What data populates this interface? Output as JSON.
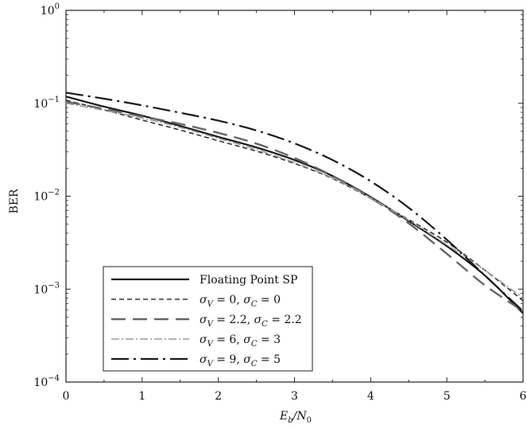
{
  "chart_data": {
    "type": "line",
    "title": "",
    "xlabel": "E_b/N_0",
    "ylabel": "BER",
    "xlim": [
      0,
      6
    ],
    "ylim": [
      0.0001,
      1
    ],
    "yscale": "log",
    "grid": false,
    "legend_position": "bottom-left",
    "x_ticks": [
      0,
      1,
      2,
      3,
      4,
      5,
      6
    ],
    "y_ticks": [
      {
        "value": 0.0001,
        "base": "10",
        "exp": "−4"
      },
      {
        "value": 0.001,
        "base": "10",
        "exp": "−3"
      },
      {
        "value": 0.01,
        "base": "10",
        "exp": "−2"
      },
      {
        "value": 0.1,
        "base": "10",
        "exp": "−1"
      },
      {
        "value": 1,
        "base": "10",
        "exp": "0"
      }
    ],
    "x": [
      0,
      0.5,
      1,
      1.5,
      2,
      2.5,
      3,
      3.5,
      4,
      4.5,
      5,
      5.5,
      6
    ],
    "series": [
      {
        "name": "Floating Point SP",
        "legend_parts": [
          {
            "t": "Floating Point SP"
          }
        ],
        "color": "#1a1a1a",
        "dash": "",
        "width": 2.2,
        "values": [
          0.118,
          0.092,
          0.0735,
          0.057,
          0.0435,
          0.0335,
          0.0245,
          0.0165,
          0.0098,
          0.0054,
          0.0029,
          0.0014,
          0.00055
        ]
      },
      {
        "name": "σV = 0, σC = 0",
        "legend_parts": [
          {
            "t": "σ",
            "i": true
          },
          {
            "t": "V",
            "sub": true,
            "i": true
          },
          {
            "t": " = 0, "
          },
          {
            "t": "σ",
            "i": true
          },
          {
            "t": "C",
            "sub": true,
            "i": true
          },
          {
            "t": " = 0"
          }
        ],
        "color": "#333333",
        "dash": "6,4",
        "width": 1.6,
        "values": [
          0.108,
          0.085,
          0.066,
          0.0515,
          0.0395,
          0.0305,
          0.0225,
          0.0155,
          0.0095,
          0.0056,
          0.0032,
          0.0016,
          0.00075
        ]
      },
      {
        "name": "σV = 2.2, σC = 2.2",
        "legend_parts": [
          {
            "t": "σ",
            "i": true
          },
          {
            "t": "V",
            "sub": true,
            "i": true
          },
          {
            "t": " = 2.2, "
          },
          {
            "t": "σ",
            "i": true
          },
          {
            "t": "C",
            "sub": true,
            "i": true
          },
          {
            "t": " = 2.2"
          }
        ],
        "color": "#666666",
        "dash": "18,9",
        "width": 2.4,
        "values": [
          0.104,
          0.087,
          0.072,
          0.06,
          0.048,
          0.0368,
          0.0258,
          0.0165,
          0.0096,
          0.0051,
          0.0024,
          0.0011,
          0.00058
        ]
      },
      {
        "name": "σV = 6, σC = 3",
        "legend_parts": [
          {
            "t": "σ",
            "i": true
          },
          {
            "t": "V",
            "sub": true,
            "i": true
          },
          {
            "t": " = 6, "
          },
          {
            "t": "σ",
            "i": true
          },
          {
            "t": "C",
            "sub": true,
            "i": true
          },
          {
            "t": " = 3"
          }
        ],
        "color": "#9a9a9a",
        "dash": "10,3,2,3",
        "width": 1.6,
        "values": [
          0.1,
          0.084,
          0.0695,
          0.055,
          0.042,
          0.0318,
          0.023,
          0.0157,
          0.0096,
          0.0055,
          0.003,
          0.0016,
          0.0008
        ]
      },
      {
        "name": "σV = 9, σC = 5",
        "legend_parts": [
          {
            "t": "σ",
            "i": true
          },
          {
            "t": "V",
            "sub": true,
            "i": true
          },
          {
            "t": " = 9, "
          },
          {
            "t": "σ",
            "i": true
          },
          {
            "t": "C",
            "sub": true,
            "i": true
          },
          {
            "t": " = 5"
          }
        ],
        "color": "#1a1a1a",
        "dash": "22,6,3,6",
        "width": 2.2,
        "values": [
          0.13,
          0.112,
          0.095,
          0.079,
          0.065,
          0.051,
          0.037,
          0.0245,
          0.0145,
          0.0075,
          0.0034,
          0.0014,
          0.00058
        ]
      }
    ]
  }
}
